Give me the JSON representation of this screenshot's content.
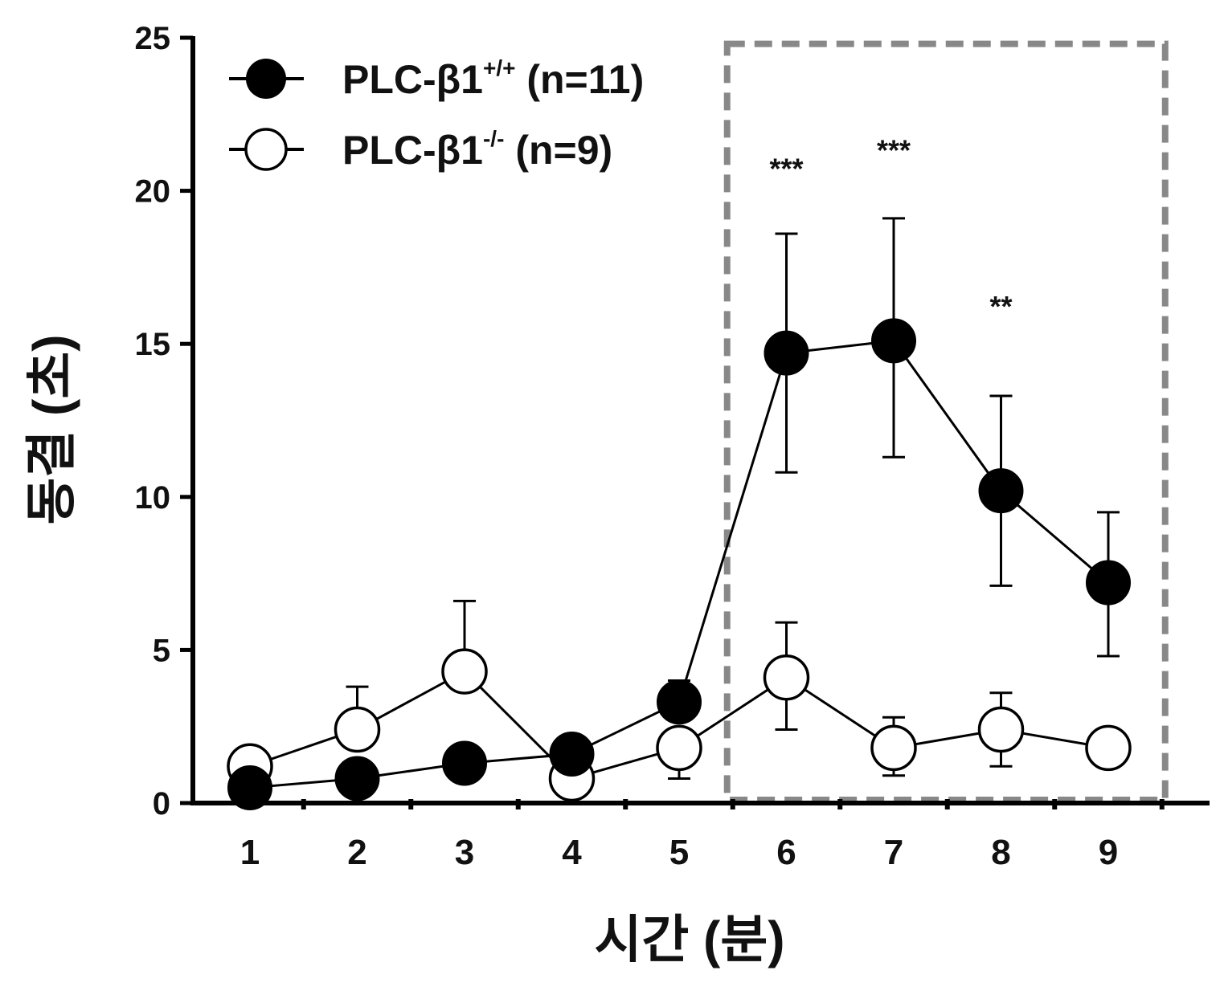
{
  "chart_data": {
    "type": "line",
    "title": "",
    "xlabel": "시간 (분)",
    "ylabel": "동결 (초)",
    "x": [
      1,
      2,
      3,
      4,
      5,
      6,
      7,
      8,
      9
    ],
    "xlim": [
      0.5,
      10.0
    ],
    "ylim": [
      0,
      25
    ],
    "yticks": [
      0,
      5,
      10,
      15,
      20,
      25
    ],
    "xticks": [
      1,
      2,
      3,
      4,
      5,
      6,
      7,
      8,
      9
    ],
    "grid": false,
    "legend_position": "top-left",
    "series": [
      {
        "name_base": "PLC-β1",
        "name_sup": "+/+",
        "name_suffix": " (n=11)",
        "marker": "filled-circle",
        "color": "#000000",
        "values": [
          0.5,
          0.8,
          1.3,
          1.6,
          3.3,
          14.7,
          15.1,
          10.2,
          7.2
        ],
        "error_upper": [
          null,
          null,
          null,
          null,
          4.0,
          18.6,
          19.1,
          13.3,
          9.5
        ],
        "error_lower": [
          null,
          null,
          null,
          null,
          null,
          10.8,
          11.3,
          7.1,
          4.8
        ]
      },
      {
        "name_base": "PLC-β1",
        "name_sup": "-/-",
        "name_suffix": " (n=9)",
        "marker": "open-circle",
        "color": "#000000",
        "values": [
          1.2,
          2.4,
          4.3,
          0.8,
          1.8,
          4.1,
          1.8,
          2.4,
          1.8
        ],
        "error_upper": [
          null,
          3.8,
          6.6,
          null,
          null,
          5.9,
          2.8,
          3.6,
          null
        ],
        "error_lower": [
          null,
          null,
          null,
          null,
          0.8,
          2.4,
          0.9,
          1.2,
          null
        ]
      }
    ],
    "annotations": [
      {
        "x": 6,
        "y": 20.4,
        "text": "***"
      },
      {
        "x": 7,
        "y": 21.0,
        "text": "***"
      },
      {
        "x": 8,
        "y": 15.9,
        "text": "**"
      }
    ],
    "highlight_region": {
      "x_from": 5.5,
      "x_to": 9.5,
      "y_from": 0,
      "y_to": 24.8,
      "style": "dashed",
      "color": "#888888"
    }
  }
}
